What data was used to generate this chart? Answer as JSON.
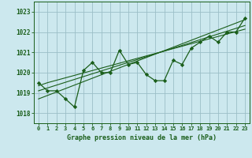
{
  "title": "Graphe pression niveau de la mer (hPa)",
  "background_color": "#cce8ee",
  "grid_color": "#9bbfc7",
  "line_color": "#1a5e1a",
  "marker_color": "#1a5e1a",
  "xlim": [
    -0.5,
    23.5
  ],
  "ylim": [
    1017.5,
    1023.5
  ],
  "yticks": [
    1018,
    1019,
    1020,
    1021,
    1022,
    1023
  ],
  "xticks": [
    0,
    1,
    2,
    3,
    4,
    5,
    6,
    7,
    8,
    9,
    10,
    11,
    12,
    13,
    14,
    15,
    16,
    17,
    18,
    19,
    20,
    21,
    22,
    23
  ],
  "data_line": [
    1019.5,
    1019.1,
    1019.1,
    1018.7,
    1018.3,
    1020.1,
    1020.5,
    1020.0,
    1020.0,
    1021.1,
    1020.4,
    1020.5,
    1019.9,
    1019.6,
    1019.6,
    1020.6,
    1020.4,
    1021.2,
    1021.5,
    1021.8,
    1021.5,
    1022.0,
    1022.0,
    1022.7
  ],
  "trend_lines": [
    [
      1019.35,
      1019.5,
      1019.62,
      1019.74,
      1019.86,
      1019.98,
      1020.1,
      1020.22,
      1020.34,
      1020.46,
      1020.58,
      1020.7,
      1020.82,
      1020.94,
      1021.06,
      1021.18,
      1021.3,
      1021.42,
      1021.54,
      1021.66,
      1021.78,
      1021.9,
      1022.02,
      1022.14
    ],
    [
      1018.7,
      1018.87,
      1019.04,
      1019.21,
      1019.38,
      1019.55,
      1019.72,
      1019.89,
      1020.06,
      1020.23,
      1020.4,
      1020.57,
      1020.74,
      1020.91,
      1021.08,
      1021.25,
      1021.42,
      1021.59,
      1021.76,
      1021.93,
      1022.1,
      1022.27,
      1022.44,
      1022.61
    ],
    [
      1019.1,
      1019.24,
      1019.38,
      1019.52,
      1019.66,
      1019.8,
      1019.94,
      1020.08,
      1020.22,
      1020.36,
      1020.5,
      1020.64,
      1020.78,
      1020.92,
      1021.06,
      1021.2,
      1021.34,
      1021.48,
      1021.62,
      1021.76,
      1021.9,
      1022.04,
      1022.18,
      1022.32
    ]
  ]
}
